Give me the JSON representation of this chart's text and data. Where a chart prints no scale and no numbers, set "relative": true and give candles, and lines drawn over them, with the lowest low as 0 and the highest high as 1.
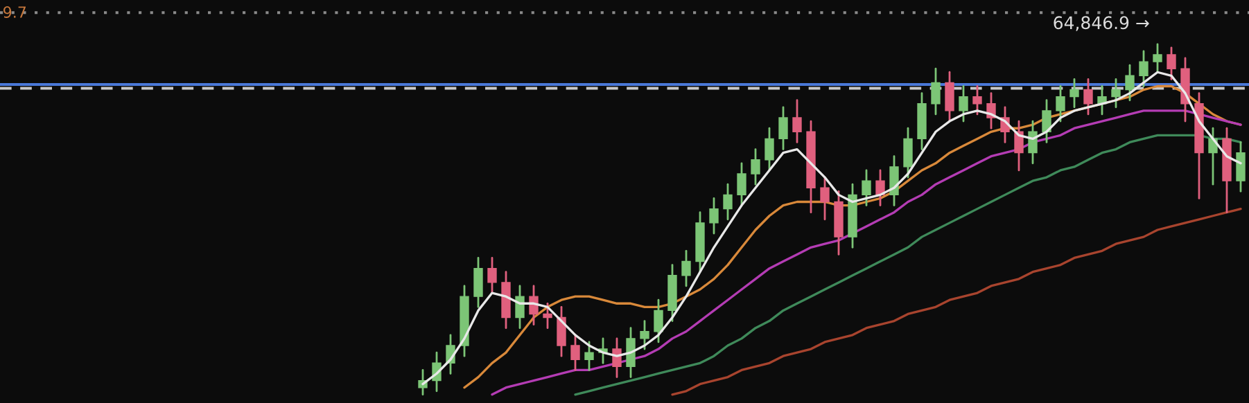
{
  "chart_data": {
    "type": "candlestick",
    "relative": true,
    "categories": [
      null,
      null,
      null,
      null,
      null,
      null,
      null,
      null,
      null,
      null,
      null,
      null,
      null,
      null,
      null,
      null,
      null,
      null,
      null,
      null,
      null,
      null,
      null,
      null,
      null,
      null,
      null,
      null,
      null,
      null,
      null,
      null,
      null,
      null,
      null,
      null,
      null,
      null,
      null,
      null,
      null,
      null,
      null,
      null,
      null,
      null,
      null,
      null,
      null,
      null,
      null,
      null,
      null,
      null,
      null,
      null,
      null,
      null,
      null,
      null
    ],
    "ohlc": [
      [
        0.02,
        0.07,
        0,
        0.04
      ],
      [
        0.04,
        0.12,
        0.01,
        0.09
      ],
      [
        0.09,
        0.17,
        0.06,
        0.14
      ],
      [
        0.14,
        0.31,
        0.11,
        0.28
      ],
      [
        0.28,
        0.39,
        0.25,
        0.36
      ],
      [
        0.36,
        0.39,
        0.29,
        0.32
      ],
      [
        0.32,
        0.35,
        0.19,
        0.22
      ],
      [
        0.22,
        0.31,
        0.19,
        0.28
      ],
      [
        0.28,
        0.31,
        0.2,
        0.23
      ],
      [
        0.23,
        0.26,
        0.19,
        0.22
      ],
      [
        0.22,
        0.25,
        0.11,
        0.14
      ],
      [
        0.14,
        0.17,
        0.07,
        0.1
      ],
      [
        0.1,
        0.15,
        0.07,
        0.12
      ],
      [
        0.12,
        0.16,
        0.09,
        0.13
      ],
      [
        0.13,
        0.16,
        0.05,
        0.08
      ],
      [
        0.08,
        0.19,
        0.05,
        0.16
      ],
      [
        0.16,
        0.21,
        0.13,
        0.18
      ],
      [
        0.18,
        0.27,
        0.15,
        0.24
      ],
      [
        0.24,
        0.37,
        0.21,
        0.34
      ],
      [
        0.34,
        0.41,
        0.31,
        0.38
      ],
      [
        0.38,
        0.52,
        0.35,
        0.49
      ],
      [
        0.49,
        0.56,
        0.46,
        0.53
      ],
      [
        0.53,
        0.6,
        0.5,
        0.57
      ],
      [
        0.57,
        0.66,
        0.54,
        0.63
      ],
      [
        0.63,
        0.7,
        0.6,
        0.67
      ],
      [
        0.67,
        0.76,
        0.64,
        0.73
      ],
      [
        0.73,
        0.82,
        0.7,
        0.79
      ],
      [
        0.79,
        0.84,
        0.72,
        0.75
      ],
      [
        0.75,
        0.78,
        0.52,
        0.59
      ],
      [
        0.59,
        0.62,
        0.5,
        0.55
      ],
      [
        0.55,
        0.58,
        0.4,
        0.45
      ],
      [
        0.45,
        0.6,
        0.42,
        0.57
      ],
      [
        0.57,
        0.64,
        0.54,
        0.61
      ],
      [
        0.61,
        0.64,
        0.54,
        0.57
      ],
      [
        0.57,
        0.68,
        0.54,
        0.65
      ],
      [
        0.65,
        0.76,
        0.62,
        0.73
      ],
      [
        0.73,
        0.86,
        0.7,
        0.83
      ],
      [
        0.83,
        0.93,
        0.8,
        0.89
      ],
      [
        0.89,
        0.92,
        0.78,
        0.81
      ],
      [
        0.81,
        0.88,
        0.78,
        0.85
      ],
      [
        0.85,
        0.88,
        0.8,
        0.83
      ],
      [
        0.83,
        0.86,
        0.76,
        0.79
      ],
      [
        0.79,
        0.82,
        0.72,
        0.75
      ],
      [
        0.75,
        0.78,
        0.64,
        0.69
      ],
      [
        0.69,
        0.78,
        0.66,
        0.75
      ],
      [
        0.75,
        0.84,
        0.72,
        0.81
      ],
      [
        0.81,
        0.88,
        0.78,
        0.85
      ],
      [
        0.85,
        0.9,
        0.82,
        0.87
      ],
      [
        0.87,
        0.9,
        0.8,
        0.83
      ],
      [
        0.83,
        0.88,
        0.8,
        0.85
      ],
      [
        0.85,
        0.9,
        0.82,
        0.87
      ],
      [
        0.87,
        0.94,
        0.84,
        0.91
      ],
      [
        0.91,
        0.98,
        0.88,
        0.95
      ],
      [
        0.95,
        1,
        0.92,
        0.97
      ],
      [
        0.97,
        0.99,
        0.9,
        0.93
      ],
      [
        0.93,
        0.96,
        0.78,
        0.83
      ],
      [
        0.83,
        0.86,
        0.56,
        0.69
      ],
      [
        0.69,
        0.76,
        0.6,
        0.73
      ],
      [
        0.73,
        0.76,
        0.52,
        0.61
      ],
      [
        0.61,
        0.72,
        0.58,
        0.69
      ]
    ],
    "series": [
      {
        "type": "line",
        "color": "#e8e8e8",
        "values": [
          0.03,
          0.06,
          0.1,
          0.16,
          0.24,
          0.29,
          0.28,
          0.26,
          0.26,
          0.25,
          0.21,
          0.17,
          0.14,
          0.12,
          0.11,
          0.12,
          0.14,
          0.17,
          0.22,
          0.28,
          0.35,
          0.42,
          0.48,
          0.54,
          0.59,
          0.64,
          0.69,
          0.7,
          0.66,
          0.62,
          0.57,
          0.55,
          0.56,
          0.57,
          0.59,
          0.63,
          0.69,
          0.75,
          0.78,
          0.8,
          0.81,
          0.8,
          0.78,
          0.74,
          0.73,
          0.75,
          0.79,
          0.81,
          0.82,
          0.83,
          0.84,
          0.86,
          0.89,
          0.92,
          0.91,
          0.86,
          0.78,
          0.73,
          0.68,
          0.66
        ]
      },
      {
        "type": "line",
        "color": "#d9893a",
        "values": [
          null,
          null,
          null,
          0.02,
          0.05,
          0.09,
          0.12,
          0.17,
          0.22,
          0.25,
          0.27,
          0.28,
          0.28,
          0.27,
          0.26,
          0.26,
          0.25,
          0.25,
          0.26,
          0.28,
          0.3,
          0.33,
          0.37,
          0.42,
          0.47,
          0.51,
          0.54,
          0.55,
          0.55,
          0.55,
          0.54,
          0.54,
          0.55,
          0.56,
          0.58,
          0.61,
          0.64,
          0.66,
          0.69,
          0.71,
          0.73,
          0.75,
          0.76,
          0.76,
          0.77,
          0.79,
          0.8,
          0.81,
          0.82,
          0.83,
          0.84,
          0.85,
          0.87,
          0.88,
          0.88,
          0.86,
          0.83,
          0.8,
          0.78,
          0.77
        ]
      },
      {
        "type": "line",
        "color": "#b43cb4",
        "values": [
          null,
          null,
          null,
          null,
          null,
          0.0,
          0.02,
          0.03,
          0.04,
          0.05,
          0.06,
          0.07,
          0.07,
          0.08,
          0.09,
          0.1,
          0.11,
          0.13,
          0.16,
          0.18,
          0.21,
          0.24,
          0.27,
          0.3,
          0.33,
          0.36,
          0.38,
          0.4,
          0.42,
          0.43,
          0.44,
          0.46,
          0.48,
          0.5,
          0.52,
          0.55,
          0.57,
          0.6,
          0.62,
          0.64,
          0.66,
          0.68,
          0.69,
          0.7,
          0.72,
          0.73,
          0.74,
          0.76,
          0.77,
          0.78,
          0.79,
          0.8,
          0.81,
          0.81,
          0.81,
          0.81,
          0.8,
          0.79,
          0.78,
          0.77
        ]
      },
      {
        "type": "line",
        "color": "#3f8a5a",
        "values": [
          null,
          null,
          null,
          null,
          null,
          null,
          null,
          null,
          null,
          null,
          null,
          0.0,
          0.01,
          0.02,
          0.03,
          0.04,
          0.05,
          0.06,
          0.07,
          0.08,
          0.09,
          0.11,
          0.14,
          0.16,
          0.19,
          0.21,
          0.24,
          0.26,
          0.28,
          0.3,
          0.32,
          0.34,
          0.36,
          0.38,
          0.4,
          0.42,
          0.45,
          0.47,
          0.49,
          0.51,
          0.53,
          0.55,
          0.57,
          0.59,
          0.61,
          0.62,
          0.64,
          0.65,
          0.67,
          0.69,
          0.7,
          0.72,
          0.73,
          0.74,
          0.74,
          0.74,
          0.74,
          0.73,
          0.73,
          0.72
        ]
      },
      {
        "type": "line",
        "color": "#a8442e",
        "values": [
          null,
          null,
          null,
          null,
          null,
          null,
          null,
          null,
          null,
          null,
          null,
          null,
          null,
          null,
          null,
          null,
          null,
          null,
          0.0,
          0.01,
          0.03,
          0.04,
          0.05,
          0.07,
          0.08,
          0.09,
          0.11,
          0.12,
          0.13,
          0.15,
          0.16,
          0.17,
          0.19,
          0.2,
          0.21,
          0.23,
          0.24,
          0.25,
          0.27,
          0.28,
          0.29,
          0.31,
          0.32,
          0.33,
          0.35,
          0.36,
          0.37,
          0.39,
          0.4,
          0.41,
          0.43,
          0.44,
          0.45,
          0.47,
          0.48,
          0.49,
          0.5,
          0.51,
          0.52,
          0.53
        ]
      }
    ],
    "ref_lines": [
      {
        "axis": "y",
        "value": 0.885,
        "color": "#4a78d8",
        "line_style": "solid"
      },
      {
        "axis": "y",
        "value": 0.874,
        "color": "#c8c8c8",
        "line_style": "dashed"
      },
      {
        "axis": "y",
        "value": 1.09,
        "color": "#8a8a8a",
        "line_style": "dotted"
      }
    ],
    "annotations": [
      "9.7",
      "64,846.9 →"
    ]
  }
}
